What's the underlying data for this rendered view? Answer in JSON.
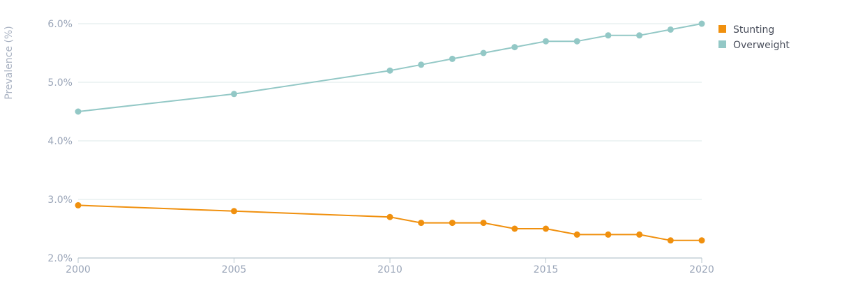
{
  "chart_data": {
    "type": "line",
    "title": "",
    "xlabel": "",
    "ylabel": "Prevalence (%)",
    "x": [
      2000,
      2005,
      2010,
      2011,
      2012,
      2013,
      2014,
      2015,
      2016,
      2017,
      2018,
      2019,
      2020
    ],
    "x_ticks": [
      2000,
      2005,
      2010,
      2015,
      2020
    ],
    "x_tick_labels": [
      "2000",
      "2005",
      "2010",
      "2015",
      "2020"
    ],
    "y_ticks": [
      2.0,
      3.0,
      4.0,
      5.0,
      6.0
    ],
    "y_tick_labels": [
      "2.0%",
      "3.0%",
      "4.0%",
      "5.0%",
      "6.0%"
    ],
    "xlim": [
      2000,
      2020
    ],
    "ylim": [
      2.0,
      6.0
    ],
    "grid": true,
    "legend_position": "top-right",
    "series": [
      {
        "name": "Stunting",
        "color": "#f0900e",
        "values": [
          2.9,
          2.8,
          2.7,
          2.6,
          2.6,
          2.6,
          2.5,
          2.5,
          2.4,
          2.4,
          2.4,
          2.3,
          2.3
        ]
      },
      {
        "name": "Overweight",
        "color": "#93c8c6",
        "values": [
          4.5,
          4.8,
          5.2,
          5.3,
          5.4,
          5.5,
          5.6,
          5.7,
          5.7,
          5.8,
          5.8,
          5.9,
          6.0
        ]
      }
    ]
  }
}
